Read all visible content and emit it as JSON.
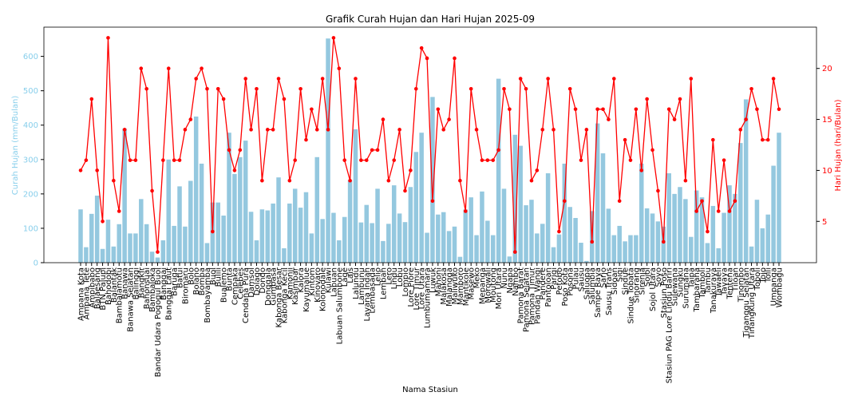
{
  "chart_data": {
    "type": "bar_line",
    "title": "Grafik Curah Hujan dan Hari Hujan 2025-09",
    "xlabel": "Nama Stasiun",
    "ylabel": "Curah Hujan (mm/Bulan)",
    "y2label": "Hari Hujan (hari/Bulan)",
    "categories": [
      "Ampana Kota",
      "Ampana Tete",
      "Ampibabo",
      "Balaesang",
      "BTN Palupi",
      "Bahodopi",
      "Balantak",
      "Bambalamotu",
      "Banawa",
      "Banawa Selatan",
      "Balinggi",
      "Bangkir",
      "Bahonsuai",
      "Bambaloka",
      "Bandar Udara Pogogul Buol",
      "Banggai",
      "Banggai Laut",
      "Baruga",
      "Batui",
      "Biromaru",
      "Bolo",
      "Bolano",
      "Bomba",
      "Bombayamba",
      "Buol",
      "Bulili",
      "Bualemo",
      "Bunta",
      "Cempaka",
      "Celebes",
      "Cendana Pura",
      "Damsol",
      "Dolago",
      "Dondo",
      "Donggala",
      "Gumbasa",
      "Kabonga Besar",
      "Kabonga Kecil",
      "Kamonji",
      "Kasimbar",
      "Kalora",
      "Kayumalue",
      "Kintom",
      "Kinovaro",
      "Kolonodale",
      "Kulawi",
      "Labuan",
      "Labuan Salumbone",
      "Lage",
      "Lais",
      "Lalundu",
      "Lambunu",
      "Layana Indah",
      "Lembasada",
      "Lelio",
      "Lembah",
      "Lero",
      "Lindu",
      "Lobu",
      "Lompio",
      "Lore Piore",
      "Lore Timur",
      "Lore Utara",
      "Lumbumamara",
      "Luwuk",
      "Mahoni",
      "Malakosa",
      "Malangga",
      "Maliwuko",
      "Mamboro",
      "Mantikole",
      "Masewo",
      "Meko",
      "Mepanga",
      "Morowali",
      "Moutong",
      "Mori Utara",
      "Nunu",
      "Ngapa",
      "Nambo",
      "Pamona Barat",
      "Pamona Selatan",
      "Pamona Timur",
      "Pandan Wangi",
      "Pandere",
      "Pantoloan",
      "Parigi",
      "Petobo",
      "Poso Kota",
      "Posona",
      "Pulau",
      "Sausu",
      "Saluopa",
      "Salumbia",
      "Sampe Raya",
      "Sarjo",
      "Sausu Trans",
      "Sidoan",
      "Sigi",
      "Sindue",
      "Sindue Tobata",
      "Sinorang",
      "Sirenja",
      "Sojol",
      "Sojol Utara",
      "Soyo",
      "Stasiun Poso",
      "Stasiun PAG Lore Lindu Bariri",
      "Sulewana",
      "Sungku",
      "Surumana",
      "Taipa",
      "Tambarana",
      "Tamboli",
      "Tambu",
      "Tanakuraya",
      "Tawaeli",
      "Tavaya",
      "Tentena",
      "Tiloan",
      "Tinombo",
      "Tiganggu Selatan",
      "Tinangkung Utara",
      "Toboli",
      "Tojo",
      "Toili",
      "Umpanga",
      "Wombagu"
    ],
    "series": [
      {
        "type": "bar",
        "color": "#94c8df",
        "axis": "y",
        "values": [
          155,
          45,
          142,
          195,
          40,
          125,
          47,
          112,
          390,
          85,
          85,
          185,
          112,
          32,
          15,
          65,
          300,
          107,
          222,
          105,
          238,
          425,
          288,
          57,
          175,
          175,
          137,
          378,
          258,
          307,
          355,
          148,
          65,
          155,
          152,
          172,
          248,
          42,
          172,
          215,
          160,
          205,
          85,
          307,
          127,
          652,
          145,
          65,
          133,
          240,
          388,
          117,
          168,
          115,
          215,
          63,
          113,
          225,
          143,
          118,
          220,
          322,
          378,
          87,
          482,
          140,
          147,
          92,
          105,
          17,
          155,
          190,
          80,
          207,
          122,
          80,
          535,
          215,
          18,
          372,
          340,
          167,
          183,
          85,
          113,
          260,
          45,
          82,
          288,
          162,
          130,
          58,
          5,
          150,
          405,
          318,
          157,
          80,
          107,
          62,
          80,
          80,
          288,
          158,
          143,
          120,
          105,
          260,
          200,
          220,
          185,
          75,
          210,
          190,
          57,
          165,
          42,
          145,
          225,
          200,
          348,
          475,
          47,
          183,
          100,
          140,
          282,
          378
        ]
      },
      {
        "type": "line",
        "color": "#ff0000",
        "axis": "y2",
        "values": [
          10,
          11,
          17,
          10,
          5,
          23,
          9,
          6,
          14,
          11,
          11,
          20,
          18,
          8,
          2,
          11,
          20,
          11,
          11,
          14,
          15,
          19,
          20,
          18,
          4,
          18,
          17,
          12,
          10,
          12,
          19,
          14,
          18,
          9,
          14,
          14,
          19,
          17,
          9,
          11,
          18,
          13,
          16,
          14,
          19,
          14,
          23,
          20,
          11,
          9,
          19,
          11,
          11,
          12,
          12,
          15,
          9,
          11,
          14,
          8,
          10,
          18,
          22,
          21,
          7,
          16,
          14,
          15,
          21,
          9,
          6,
          18,
          14,
          11,
          11,
          11,
          12,
          18,
          16,
          2,
          19,
          18,
          9,
          10,
          14,
          19,
          14,
          4,
          7,
          18,
          16,
          11,
          14,
          3,
          16,
          16,
          15,
          19,
          7,
          13,
          11,
          16,
          10,
          17,
          12,
          8,
          3,
          16,
          15,
          17,
          9,
          19,
          6,
          7,
          4,
          13,
          6,
          11,
          6,
          7,
          14,
          15,
          18,
          16,
          13,
          13,
          19,
          16
        ]
      }
    ],
    "ylim": [
      0,
      685
    ],
    "yticks": [
      0,
      100,
      200,
      300,
      400,
      500,
      600
    ],
    "y2lim": [
      0.95,
      24.05
    ],
    "y2ticks": [
      5,
      10,
      15,
      20
    ],
    "ylabel_color": "#87ceeb",
    "y2label_color": "#ff0000",
    "grid": false
  }
}
